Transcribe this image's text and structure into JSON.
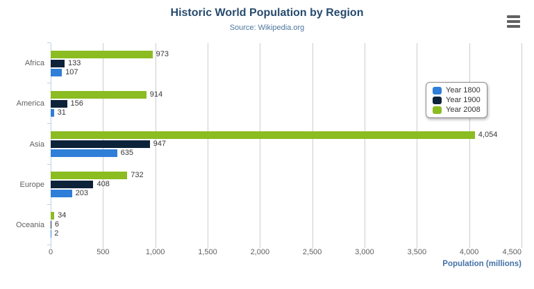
{
  "chart_data": {
    "type": "bar",
    "orientation": "horizontal",
    "title": "Historic World Population by Region",
    "subtitle": "Source: Wikipedia.org",
    "categories": [
      "Africa",
      "America",
      "Asia",
      "Europe",
      "Oceania"
    ],
    "series": [
      {
        "name": "Year 1800",
        "color": "#2f7ed8",
        "values": [
          107,
          31,
          635,
          203,
          2
        ]
      },
      {
        "name": "Year 1900",
        "color": "#0d233a",
        "values": [
          133,
          156,
          947,
          408,
          6
        ]
      },
      {
        "name": "Year 2008",
        "color": "#8bbc21",
        "values": [
          973,
          914,
          4054,
          732,
          34
        ]
      }
    ],
    "bar_order_top_to_bottom": [
      "Year 2008",
      "Year 1900",
      "Year 1800"
    ],
    "data_labels": true,
    "xlabel": "Population (millions)",
    "ylabel": "",
    "xlim": [
      0,
      4500
    ],
    "x_tick_interval": 500,
    "grid": true,
    "legend_position": "right"
  },
  "axis": {
    "x_ticks": [
      "0",
      "500",
      "1,000",
      "1,500",
      "2,000",
      "2,500",
      "3,000",
      "3,500",
      "4,000",
      "4,500"
    ]
  },
  "menu": {
    "icon": "hamburger-menu"
  },
  "colors": {
    "title": "#274b6d",
    "subtitle": "#4d759e",
    "axis_title": "#4572a7",
    "axis_labels": "#606060",
    "data_labels": "#373737",
    "grid_line": "#cdcdcd",
    "axis_line": "#c0d0e0",
    "menu_icon": "#616161",
    "legend_border": "#8c8c8c"
  }
}
